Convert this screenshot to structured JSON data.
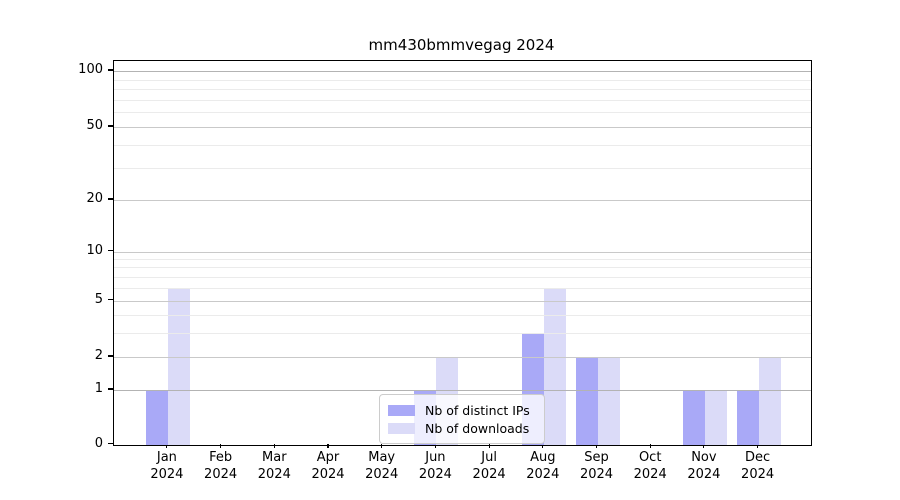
{
  "chart_data": {
    "type": "bar",
    "title": "mm430bmmvegag 2024",
    "categories": [
      "Jan",
      "Feb",
      "Mar",
      "Apr",
      "May",
      "Jun",
      "Jul",
      "Aug",
      "Sep",
      "Oct",
      "Nov",
      "Dec"
    ],
    "x_tick_year": "2024",
    "series": [
      {
        "name": "Nb of distinct IPs",
        "color": "#a9a9f7",
        "values": [
          1,
          0,
          0,
          0,
          0,
          1,
          0,
          3,
          2,
          0,
          1,
          1
        ]
      },
      {
        "name": "Nb of downloads",
        "color": "#dbdbf8",
        "values": [
          6,
          0,
          0,
          0,
          0,
          2,
          0,
          6,
          2,
          0,
          1,
          2
        ]
      }
    ],
    "yscale": "symlog",
    "ylim": [
      0,
      110
    ],
    "yticks_major": [
      0,
      1,
      2,
      5,
      10,
      20,
      50,
      100
    ],
    "yticks_minor": [
      3,
      4,
      6,
      7,
      8,
      9,
      30,
      40,
      60,
      70,
      80,
      90
    ],
    "grid": true,
    "legend_position": "lower-center-inside"
  }
}
